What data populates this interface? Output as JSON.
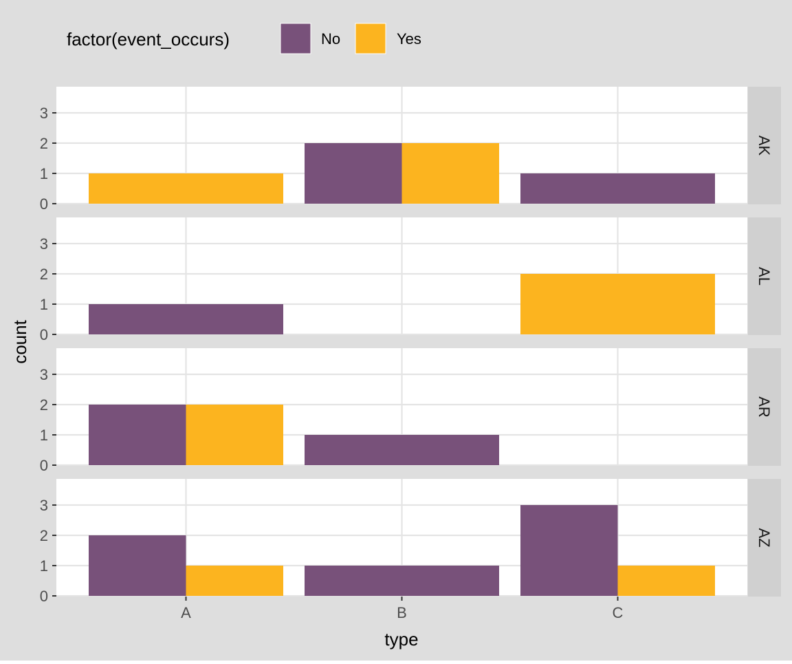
{
  "chart_data": {
    "type": "bar",
    "facet_var": "",
    "facets": [
      "AK",
      "AL",
      "AR",
      "AZ"
    ],
    "categories": [
      "A",
      "B",
      "C"
    ],
    "xlabel": "type",
    "ylabel": "count",
    "yticks": [
      0,
      1,
      2,
      3
    ],
    "ylim": [
      0,
      3.9
    ],
    "legend_title": "factor(event_occurs)",
    "legend_position": "top-left",
    "grid": true,
    "dodge": "preserve-total",
    "series": [
      {
        "name": "No",
        "color": "#78517A",
        "values": {
          "AK": [
            null,
            2,
            1
          ],
          "AL": [
            1,
            null,
            null
          ],
          "AR": [
            2,
            1,
            null
          ],
          "AZ": [
            2,
            1,
            3
          ]
        }
      },
      {
        "name": "Yes",
        "color": "#FCB41F",
        "values": {
          "AK": [
            1,
            2,
            null
          ],
          "AL": [
            null,
            null,
            2
          ],
          "AR": [
            2,
            null,
            null
          ],
          "AZ": [
            1,
            null,
            1
          ]
        }
      }
    ]
  },
  "colors": {
    "background": "#DEDEDE",
    "panel": "#FFFFFF",
    "grid": "#E4E4E4",
    "strip": "#D0D0D0",
    "text": "#000000",
    "tick_text": "#4D4D4D"
  }
}
